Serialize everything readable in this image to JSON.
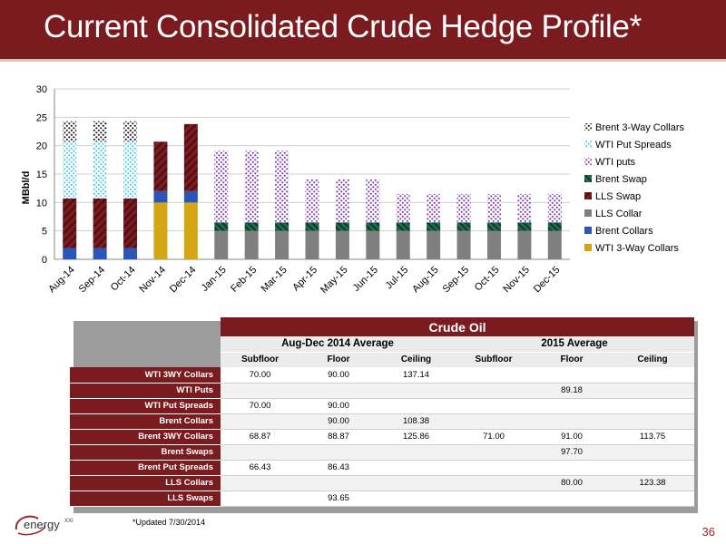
{
  "slide": {
    "title": "Current Consolidated Crude Hedge Profile*",
    "footnote": "*Updated 7/30/2014",
    "page_number": "36",
    "logo_text": "energy",
    "logo_suffix": "XXI"
  },
  "colors": {
    "header_bg": "#7a1c1f",
    "wti_3way_collars": "#d4a514",
    "brent_collars": "#2a56b8",
    "lls_collar": "#7f7f7f",
    "lls_swap": "#7a1c1f",
    "brent_swap": "#1f6b4d",
    "wti_puts": "#7f3fb0",
    "wti_put_spreads": "#4cc8e8",
    "brent_3way_collars": "#222222"
  },
  "chart_data": {
    "type": "bar",
    "stacked": true,
    "title": "",
    "xlabel": "",
    "ylabel": "MBbl/d",
    "ylim": [
      0,
      30
    ],
    "yticks": [
      0,
      5,
      10,
      15,
      20,
      25,
      30
    ],
    "grid": true,
    "legend_position": "right",
    "categories": [
      "Aug-14",
      "Sep-14",
      "Oct-14",
      "Nov-14",
      "Dec-14",
      "Jan-15",
      "Feb-15",
      "Mar-15",
      "Apr-15",
      "May-15",
      "Jun-15",
      "Jul-15",
      "Aug-15",
      "Sep-15",
      "Oct-15",
      "Nov-15",
      "Dec-15"
    ],
    "series": [
      {
        "name": "WTI 3-Way Collars",
        "color_key": "wti_3way_collars",
        "pattern": "solid",
        "values": [
          0,
          0,
          0,
          10,
          10,
          0,
          0,
          0,
          0,
          0,
          0,
          0,
          0,
          0,
          0,
          0,
          0
        ]
      },
      {
        "name": "Brent Collars",
        "color_key": "brent_collars",
        "pattern": "solid",
        "values": [
          2,
          2,
          2,
          2,
          2,
          0,
          0,
          0,
          0,
          0,
          0,
          0,
          0,
          0,
          0,
          0,
          0
        ]
      },
      {
        "name": "LLS Collar",
        "color_key": "lls_collar",
        "pattern": "solid",
        "values": [
          0,
          0,
          0,
          0,
          0,
          5,
          5,
          5,
          5,
          5,
          5,
          5,
          5,
          5,
          5,
          5,
          5
        ]
      },
      {
        "name": "LLS Swap",
        "color_key": "lls_swap",
        "pattern": "diag",
        "values": [
          8.7,
          8.7,
          8.7,
          8.7,
          11.8,
          0,
          0,
          0,
          0,
          0,
          0,
          0,
          0,
          0,
          0,
          0,
          0
        ]
      },
      {
        "name": "Brent Swap",
        "color_key": "brent_swap",
        "pattern": "diag",
        "values": [
          0,
          0,
          0,
          0,
          0,
          1.5,
          1.5,
          1.5,
          1.5,
          1.5,
          1.5,
          1.5,
          1.5,
          1.5,
          1.5,
          1.5,
          1.5
        ]
      },
      {
        "name": "WTI puts",
        "color_key": "wti_puts",
        "pattern": "dots",
        "values": [
          0,
          0,
          0,
          0,
          0,
          12.6,
          12.6,
          12.6,
          7.6,
          7.6,
          7.6,
          5,
          5,
          5,
          5,
          5,
          5
        ]
      },
      {
        "name": "WTI Put Spreads",
        "color_key": "wti_put_spreads",
        "pattern": "dots",
        "values": [
          10,
          10,
          10,
          0,
          0,
          0,
          0,
          0,
          0,
          0,
          0,
          0,
          0,
          0,
          0,
          0,
          0
        ]
      },
      {
        "name": "Brent 3-Way Collars",
        "color_key": "brent_3way_collars",
        "pattern": "dots",
        "values": [
          3.6,
          3.6,
          3.6,
          0,
          0,
          0,
          0,
          0,
          0,
          0,
          0,
          0,
          0,
          0,
          0,
          0,
          0
        ]
      }
    ]
  },
  "table": {
    "title": "Crude Oil",
    "groups": [
      "Aug-Dec 2014 Average",
      "2015 Average"
    ],
    "columns": [
      "Subfloor",
      "Floor",
      "Ceiling",
      "Subfloor",
      "Floor",
      "Ceiling"
    ],
    "rows": [
      {
        "label": "WTI 3WY Collars",
        "cells": [
          "70.00",
          "90.00",
          "137.14",
          "",
          "",
          ""
        ]
      },
      {
        "label": "WTI Puts",
        "cells": [
          "",
          "",
          "",
          "",
          "89.18",
          ""
        ]
      },
      {
        "label": "WTI Put Spreads",
        "cells": [
          "70.00",
          "90.00",
          "",
          "",
          "",
          ""
        ]
      },
      {
        "label": "Brent Collars",
        "cells": [
          "",
          "90.00",
          "108.38",
          "",
          "",
          ""
        ]
      },
      {
        "label": "Brent 3WY Collars",
        "cells": [
          "68.87",
          "88.87",
          "125.86",
          "71.00",
          "91.00",
          "113.75"
        ]
      },
      {
        "label": "Brent Swaps",
        "cells": [
          "",
          "",
          "",
          "",
          "97.70",
          ""
        ]
      },
      {
        "label": "Brent Put Spreads",
        "cells": [
          "66.43",
          "86.43",
          "",
          "",
          "",
          ""
        ]
      },
      {
        "label": "LLS Collars",
        "cells": [
          "",
          "",
          "",
          "",
          "80.00",
          "123.38"
        ]
      },
      {
        "label": "LLS Swaps",
        "cells": [
          "",
          "93.65",
          "",
          "",
          "",
          ""
        ]
      }
    ]
  }
}
